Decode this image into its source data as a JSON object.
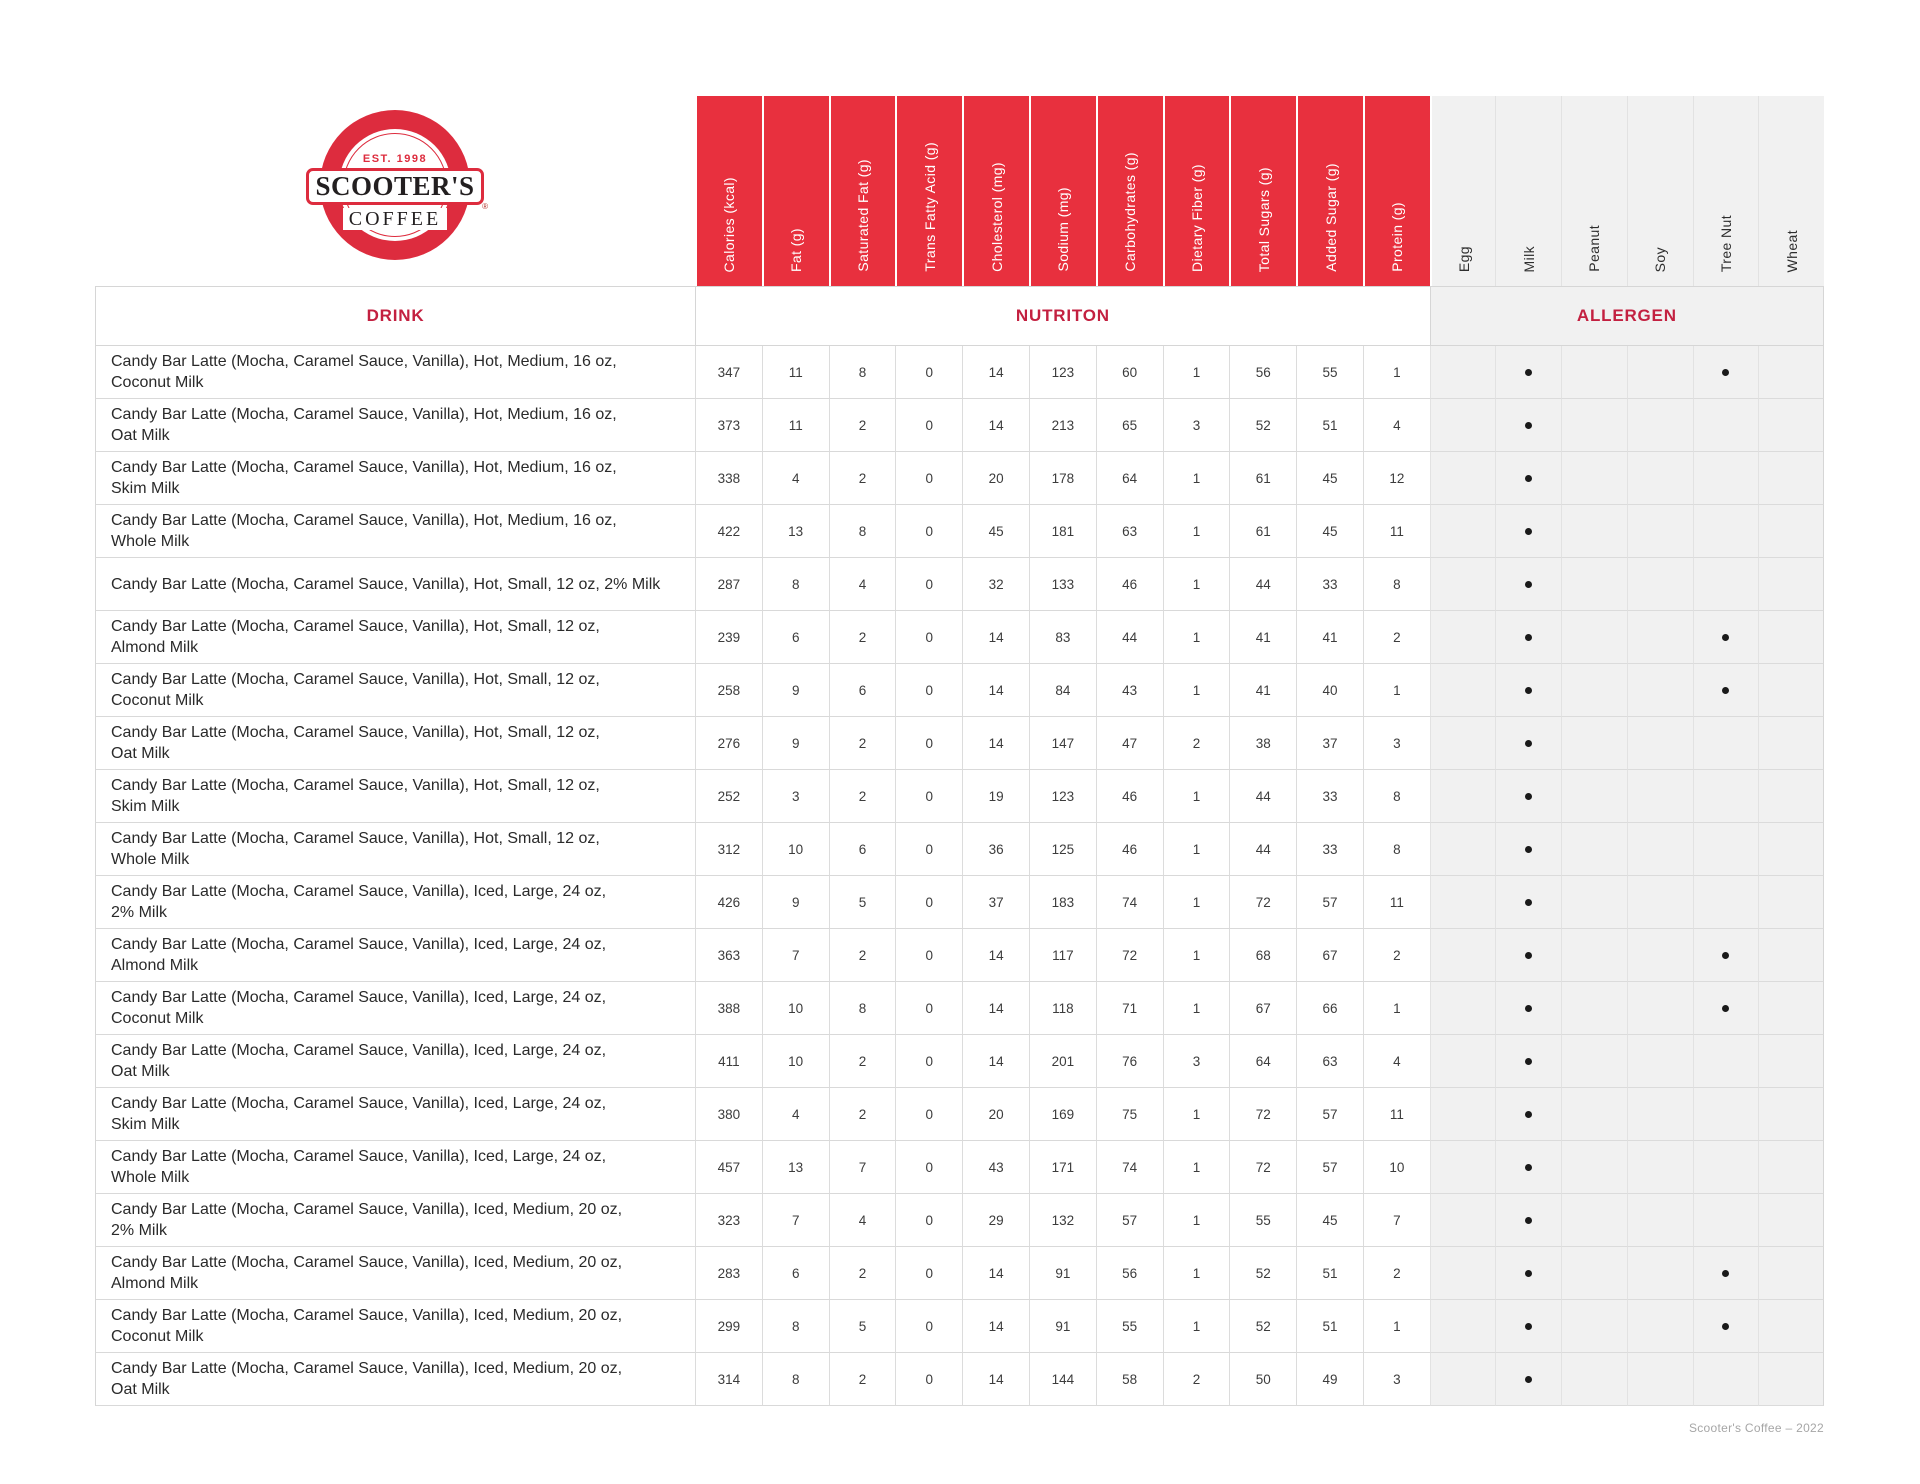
{
  "logo": {
    "est": "EST. 1998",
    "name": "SCOOTER'S",
    "word": "COFFEE",
    "registered": "®"
  },
  "colors": {
    "brand_red": "#E8303E",
    "logo_red": "#DD2C3E",
    "label_red": "#C32040",
    "allergen_bg": "#F1F1F1",
    "grid_line": "#D9D9D9"
  },
  "table": {
    "drink_header": "DRINK",
    "section_nutrition": "NUTRITON",
    "section_allergen": "ALLERGEN",
    "nutrition_columns": [
      "Calories (kcal)",
      "Fat (g)",
      "Saturated Fat (g)",
      "Trans Fatty Acid (g)",
      "Cholesterol (mg)",
      "Sodium (mg)",
      "Carbohydrates (g)",
      "Dietary Fiber (g)",
      "Total Sugars (g)",
      "Added Sugar (g)",
      "Protein (g)"
    ],
    "allergen_columns": [
      "Egg",
      "Milk",
      "Peanut",
      "Soy",
      "Tree Nut",
      "Wheat"
    ],
    "rows": [
      {
        "name_line1": "Candy Bar Latte (Mocha, Caramel Sauce, Vanilla), Hot, Medium, 16 oz,",
        "name_line2": "Coconut Milk",
        "values": [
          "347",
          "11",
          "8",
          "0",
          "14",
          "123",
          "60",
          "1",
          "56",
          "55",
          "1"
        ],
        "allergens": [
          "Milk",
          "Tree Nut"
        ]
      },
      {
        "name_line1": "Candy Bar Latte (Mocha, Caramel Sauce, Vanilla), Hot, Medium, 16 oz,",
        "name_line2": "Oat Milk",
        "values": [
          "373",
          "11",
          "2",
          "0",
          "14",
          "213",
          "65",
          "3",
          "52",
          "51",
          "4"
        ],
        "allergens": [
          "Milk"
        ]
      },
      {
        "name_line1": "Candy Bar Latte (Mocha, Caramel Sauce, Vanilla), Hot, Medium, 16 oz,",
        "name_line2": "Skim Milk",
        "values": [
          "338",
          "4",
          "2",
          "0",
          "20",
          "178",
          "64",
          "1",
          "61",
          "45",
          "12"
        ],
        "allergens": [
          "Milk"
        ]
      },
      {
        "name_line1": "Candy Bar Latte (Mocha, Caramel Sauce, Vanilla), Hot, Medium, 16 oz,",
        "name_line2": "Whole Milk",
        "values": [
          "422",
          "13",
          "8",
          "0",
          "45",
          "181",
          "63",
          "1",
          "61",
          "45",
          "11"
        ],
        "allergens": [
          "Milk"
        ]
      },
      {
        "name_line1": "Candy Bar Latte (Mocha, Caramel Sauce, Vanilla), Hot, Small, 12 oz, 2% Milk",
        "name_line2": "",
        "values": [
          "287",
          "8",
          "4",
          "0",
          "32",
          "133",
          "46",
          "1",
          "44",
          "33",
          "8"
        ],
        "allergens": [
          "Milk"
        ]
      },
      {
        "name_line1": "Candy Bar Latte (Mocha, Caramel Sauce, Vanilla), Hot, Small, 12 oz,",
        "name_line2": "Almond Milk",
        "values": [
          "239",
          "6",
          "2",
          "0",
          "14",
          "83",
          "44",
          "1",
          "41",
          "41",
          "2"
        ],
        "allergens": [
          "Milk",
          "Tree Nut"
        ]
      },
      {
        "name_line1": "Candy Bar Latte (Mocha, Caramel Sauce, Vanilla), Hot, Small, 12 oz,",
        "name_line2": "Coconut Milk",
        "values": [
          "258",
          "9",
          "6",
          "0",
          "14",
          "84",
          "43",
          "1",
          "41",
          "40",
          "1"
        ],
        "allergens": [
          "Milk",
          "Tree Nut"
        ]
      },
      {
        "name_line1": "Candy Bar Latte (Mocha, Caramel Sauce, Vanilla), Hot, Small, 12 oz,",
        "name_line2": "Oat Milk",
        "values": [
          "276",
          "9",
          "2",
          "0",
          "14",
          "147",
          "47",
          "2",
          "38",
          "37",
          "3"
        ],
        "allergens": [
          "Milk"
        ]
      },
      {
        "name_line1": "Candy Bar Latte (Mocha, Caramel Sauce, Vanilla), Hot, Small, 12 oz,",
        "name_line2": "Skim Milk",
        "values": [
          "252",
          "3",
          "2",
          "0",
          "19",
          "123",
          "46",
          "1",
          "44",
          "33",
          "8"
        ],
        "allergens": [
          "Milk"
        ]
      },
      {
        "name_line1": "Candy Bar Latte (Mocha, Caramel Sauce, Vanilla), Hot, Small, 12 oz,",
        "name_line2": "Whole Milk",
        "values": [
          "312",
          "10",
          "6",
          "0",
          "36",
          "125",
          "46",
          "1",
          "44",
          "33",
          "8"
        ],
        "allergens": [
          "Milk"
        ]
      },
      {
        "name_line1": "Candy Bar Latte (Mocha, Caramel Sauce, Vanilla), Iced, Large, 24 oz,",
        "name_line2": "2% Milk",
        "values": [
          "426",
          "9",
          "5",
          "0",
          "37",
          "183",
          "74",
          "1",
          "72",
          "57",
          "11"
        ],
        "allergens": [
          "Milk"
        ]
      },
      {
        "name_line1": "Candy Bar Latte (Mocha, Caramel Sauce, Vanilla), Iced, Large, 24 oz,",
        "name_line2": "Almond Milk",
        "values": [
          "363",
          "7",
          "2",
          "0",
          "14",
          "117",
          "72",
          "1",
          "68",
          "67",
          "2"
        ],
        "allergens": [
          "Milk",
          "Tree Nut"
        ]
      },
      {
        "name_line1": "Candy Bar Latte (Mocha, Caramel Sauce, Vanilla), Iced, Large, 24 oz,",
        "name_line2": "Coconut Milk",
        "values": [
          "388",
          "10",
          "8",
          "0",
          "14",
          "118",
          "71",
          "1",
          "67",
          "66",
          "1"
        ],
        "allergens": [
          "Milk",
          "Tree Nut"
        ]
      },
      {
        "name_line1": "Candy Bar Latte (Mocha, Caramel Sauce, Vanilla), Iced, Large, 24 oz,",
        "name_line2": "Oat Milk",
        "values": [
          "411",
          "10",
          "2",
          "0",
          "14",
          "201",
          "76",
          "3",
          "64",
          "63",
          "4"
        ],
        "allergens": [
          "Milk"
        ]
      },
      {
        "name_line1": "Candy Bar Latte (Mocha, Caramel Sauce, Vanilla), Iced, Large, 24 oz,",
        "name_line2": "Skim Milk",
        "values": [
          "380",
          "4",
          "2",
          "0",
          "20",
          "169",
          "75",
          "1",
          "72",
          "57",
          "11"
        ],
        "allergens": [
          "Milk"
        ]
      },
      {
        "name_line1": "Candy Bar Latte (Mocha, Caramel Sauce, Vanilla), Iced, Large, 24 oz,",
        "name_line2": "Whole Milk",
        "values": [
          "457",
          "13",
          "7",
          "0",
          "43",
          "171",
          "74",
          "1",
          "72",
          "57",
          "10"
        ],
        "allergens": [
          "Milk"
        ]
      },
      {
        "name_line1": "Candy Bar Latte (Mocha, Caramel Sauce, Vanilla), Iced, Medium, 20 oz,",
        "name_line2": "2% Milk",
        "values": [
          "323",
          "7",
          "4",
          "0",
          "29",
          "132",
          "57",
          "1",
          "55",
          "45",
          "7"
        ],
        "allergens": [
          "Milk"
        ]
      },
      {
        "name_line1": "Candy Bar Latte (Mocha, Caramel Sauce, Vanilla), Iced, Medium, 20 oz,",
        "name_line2": "Almond Milk",
        "values": [
          "283",
          "6",
          "2",
          "0",
          "14",
          "91",
          "56",
          "1",
          "52",
          "51",
          "2"
        ],
        "allergens": [
          "Milk",
          "Tree Nut"
        ]
      },
      {
        "name_line1": "Candy Bar Latte (Mocha, Caramel Sauce, Vanilla), Iced, Medium, 20 oz,",
        "name_line2": "Coconut Milk",
        "values": [
          "299",
          "8",
          "5",
          "0",
          "14",
          "91",
          "55",
          "1",
          "52",
          "51",
          "1"
        ],
        "allergens": [
          "Milk",
          "Tree Nut"
        ]
      },
      {
        "name_line1": "Candy Bar Latte (Mocha, Caramel Sauce, Vanilla), Iced, Medium, 20 oz,",
        "name_line2": "Oat Milk",
        "values": [
          "314",
          "8",
          "2",
          "0",
          "14",
          "144",
          "58",
          "2",
          "50",
          "49",
          "3"
        ],
        "allergens": [
          "Milk"
        ]
      }
    ]
  },
  "footer": "Scooter's Coffee – 2022"
}
